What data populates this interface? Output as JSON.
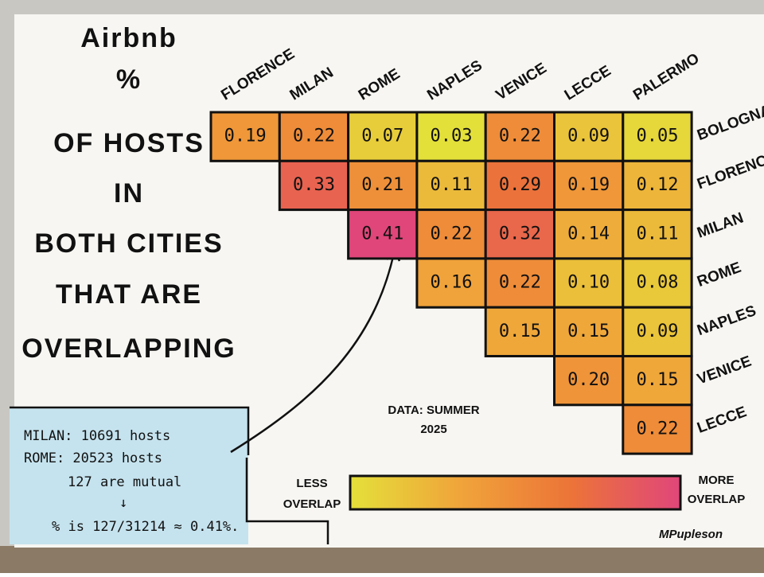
{
  "chart_data": {
    "type": "heatmap",
    "title": [
      "Airbnb",
      "%",
      "OF HOSTS",
      "IN",
      "BOTH CITIES",
      "THAT ARE",
      "OVERLAPPING"
    ],
    "columns": [
      "FLORENCE",
      "MILAN",
      "ROME",
      "NAPLES",
      "VENICE",
      "LECCE",
      "PALERMO"
    ],
    "rows": [
      "BOLOGNA",
      "FLORENCE",
      "MILAN",
      "ROME",
      "NAPLES",
      "VENICE",
      "LECCE"
    ],
    "values": [
      [
        0.19,
        0.22,
        0.07,
        0.03,
        0.22,
        0.09,
        0.05
      ],
      [
        null,
        0.33,
        0.21,
        0.11,
        0.29,
        0.19,
        0.12
      ],
      [
        null,
        null,
        0.41,
        0.22,
        0.32,
        0.14,
        0.11
      ],
      [
        null,
        null,
        null,
        0.16,
        0.22,
        0.1,
        0.08
      ],
      [
        null,
        null,
        null,
        null,
        0.15,
        0.15,
        0.09
      ],
      [
        null,
        null,
        null,
        null,
        null,
        0.2,
        0.15
      ],
      [
        null,
        null,
        null,
        null,
        null,
        null,
        0.22
      ]
    ],
    "value_labels": [
      [
        "0.19",
        "0.22",
        "0.07",
        "0.03",
        "0.22",
        "0.09",
        "0.05"
      ],
      [
        null,
        "0.33",
        "0.21",
        "0.11",
        "0.29",
        "0.19",
        "0.12"
      ],
      [
        null,
        null,
        "0.41",
        "0.22",
        "0.32",
        "0.14",
        "0.11"
      ],
      [
        null,
        null,
        null,
        "0.16",
        "0.22",
        "0.10",
        "0.08"
      ],
      [
        null,
        null,
        null,
        null,
        "0.15",
        "0.15",
        "0.09"
      ],
      [
        null,
        null,
        null,
        null,
        null,
        "0.20",
        "0.15"
      ],
      [
        null,
        null,
        null,
        null,
        null,
        null,
        "0.22"
      ]
    ],
    "colorscale": [
      "#e4e03a",
      "#f0a43a",
      "#ec7438",
      "#e0467a"
    ],
    "legend": {
      "low": [
        "LESS",
        "OVERLAP"
      ],
      "high": [
        "MORE",
        "OVERLAP"
      ]
    },
    "source": [
      "DATA: SUMMER",
      "2025"
    ],
    "annotation": [
      "MILAN: 10691 hosts",
      "ROME: 20523 hosts",
      "127 are mutual",
      "↓",
      "% is 127/31214 ≈ 0.41%."
    ],
    "signature": "MPupleson"
  }
}
